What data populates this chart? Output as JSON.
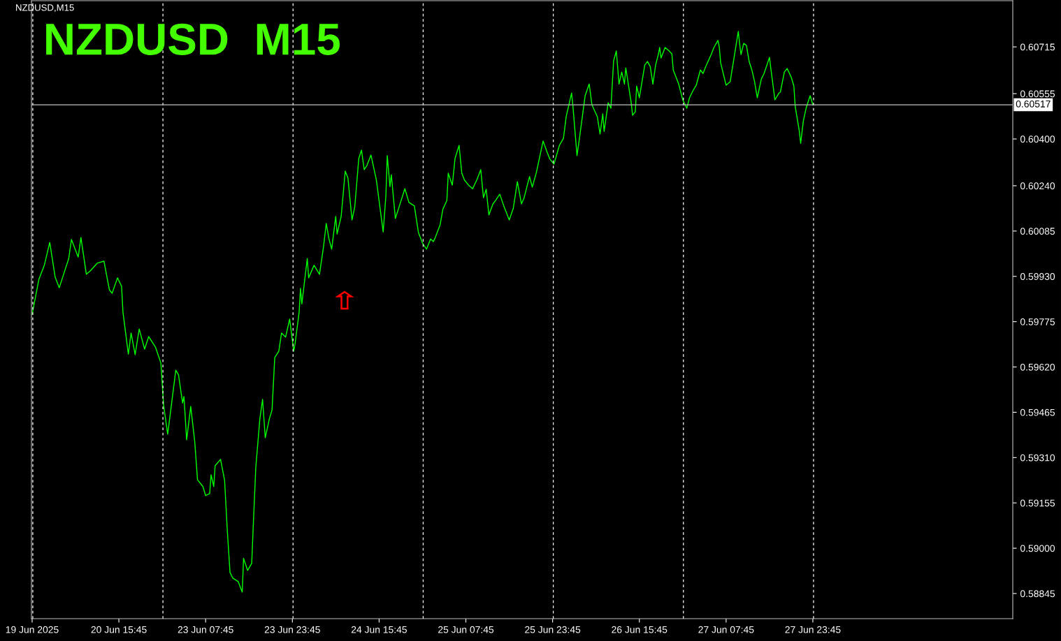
{
  "chart_data": {
    "type": "line",
    "title": "NZDUSD  M15",
    "subtitle": "NZDUSD,M15",
    "categories": [
      "19 Jun 2025",
      null,
      null,
      null,
      null,
      null,
      null,
      null,
      null,
      null,
      null,
      null,
      null,
      null,
      null,
      null,
      null,
      null,
      null,
      null,
      null,
      null,
      null,
      null,
      null,
      null,
      null,
      null,
      null,
      null,
      null,
      null,
      null,
      null,
      null,
      null,
      null,
      null,
      null,
      null,
      null,
      null,
      null,
      null,
      null,
      null,
      null,
      null,
      null,
      null,
      null,
      null,
      null,
      null,
      null,
      null,
      null,
      null,
      null,
      null,
      null,
      null,
      null,
      null,
      "20 Jun 15:45",
      null,
      null,
      null,
      null,
      null,
      null,
      null,
      null,
      null,
      null,
      null,
      null,
      null,
      null,
      null,
      null,
      null,
      null,
      null,
      null,
      null,
      null,
      null,
      null,
      null,
      null,
      null,
      null,
      null,
      null,
      null,
      null,
      null,
      null,
      null,
      null,
      null,
      null,
      null,
      null,
      null,
      null,
      null,
      null,
      null,
      null,
      null,
      null,
      null,
      null,
      null,
      null,
      null,
      null,
      null,
      null,
      null,
      null,
      null,
      null,
      null,
      null,
      null,
      "23 Jun 07:45",
      null,
      null,
      null,
      null,
      null,
      null,
      null,
      null,
      null,
      null,
      null,
      null,
      null,
      null,
      null,
      null,
      null,
      null,
      null,
      null,
      null,
      null,
      null,
      null,
      null,
      null,
      null,
      null,
      null,
      null,
      null,
      null,
      null,
      null,
      null,
      null,
      null,
      null,
      null,
      null,
      null,
      null,
      null,
      null,
      null,
      null,
      null,
      null,
      null,
      null,
      null,
      null,
      null,
      null,
      null,
      null,
      null,
      null,
      null,
      null,
      null,
      null,
      null,
      "23 Jun 23:45",
      null,
      null,
      null,
      null,
      null,
      null,
      null,
      null,
      null,
      null,
      null,
      null,
      null,
      null,
      null,
      null,
      null,
      null,
      null,
      null,
      null,
      null,
      null,
      null,
      null,
      null,
      null,
      null,
      null,
      null,
      null,
      null,
      null,
      null,
      null,
      null,
      null,
      null,
      null,
      null,
      null,
      null,
      null,
      null,
      null,
      null,
      null,
      null,
      null,
      null,
      null,
      null,
      null,
      null,
      null,
      null,
      null,
      null,
      null,
      null,
      null,
      null,
      null,
      "24 Jun 15:45",
      null,
      null,
      null,
      null,
      null,
      null,
      null,
      null,
      null,
      null,
      null,
      null,
      null,
      null,
      null,
      null,
      null,
      null,
      null,
      null,
      null,
      null,
      null,
      null,
      null,
      null,
      null,
      null,
      null,
      null,
      null,
      null,
      null,
      null,
      null,
      null,
      null,
      null,
      null,
      null,
      null,
      null,
      null,
      null,
      null,
      null,
      null,
      null,
      null,
      null,
      null,
      null,
      null,
      null,
      null,
      null,
      null,
      null,
      null,
      null,
      null,
      null,
      null,
      "25 Jun 07:45",
      null,
      null,
      null,
      null,
      null,
      null,
      null,
      null,
      null,
      null,
      null,
      null,
      null,
      null,
      null,
      null,
      null,
      null,
      null,
      null,
      null,
      null,
      null,
      null,
      null,
      null,
      null,
      null,
      null,
      null,
      null,
      null,
      null,
      null,
      null,
      null,
      null,
      null,
      null,
      null,
      null,
      null,
      null,
      null,
      null,
      null,
      null,
      null,
      null,
      null,
      null,
      null,
      null,
      null,
      null,
      null,
      null,
      null,
      null,
      null,
      null,
      null,
      null,
      "25 Jun 23:45",
      null,
      null,
      null,
      null,
      null,
      null,
      null,
      null,
      null,
      null,
      null,
      null,
      null,
      null,
      null,
      null,
      null,
      null,
      null,
      null,
      null,
      null,
      null,
      null,
      null,
      null,
      null,
      null,
      null,
      null,
      null,
      null,
      null,
      null,
      null,
      null,
      null,
      null,
      null,
      null,
      null,
      null,
      null,
      null,
      null,
      null,
      null,
      null,
      null,
      null,
      null,
      null,
      null,
      null,
      null,
      null,
      null,
      null,
      null,
      null,
      null,
      null,
      null,
      "26 Jun 15:45",
      null,
      null,
      null,
      null,
      null,
      null,
      null,
      null,
      null,
      null,
      null,
      null,
      null,
      null,
      null,
      null,
      null,
      null,
      null,
      null,
      null,
      null,
      null,
      null,
      null,
      null,
      null,
      null,
      null,
      null,
      null,
      null,
      null,
      null,
      null,
      null,
      null,
      null,
      null,
      null,
      null,
      null,
      null,
      null,
      null,
      null,
      null,
      null,
      null,
      null,
      null,
      null,
      null,
      null,
      null,
      null,
      null,
      null,
      null,
      null,
      null,
      null,
      null,
      "27 Jun 07:45",
      null,
      null,
      null,
      null,
      null,
      null,
      null,
      null,
      null,
      null,
      null,
      null,
      null,
      null,
      null,
      null,
      null,
      null,
      null,
      null,
      null,
      null,
      null,
      null,
      null,
      null,
      null,
      null,
      null,
      null,
      null,
      null,
      null,
      null,
      null,
      null,
      null,
      null,
      null,
      null,
      null,
      null,
      null,
      null,
      null,
      null,
      null,
      null,
      null,
      null,
      null,
      null,
      null,
      null,
      null,
      null,
      null,
      null,
      null,
      null,
      null,
      null,
      null,
      "27 Jun 23:45",
      null,
      null,
      null,
      null,
      null,
      null,
      null,
      null,
      null,
      null,
      null,
      null,
      null,
      null,
      null,
      null,
      null,
      null,
      null,
      null,
      null,
      null,
      null,
      null,
      null,
      null,
      null,
      null,
      null,
      null,
      null,
      null,
      null,
      null,
      null,
      null,
      null,
      null,
      null,
      null,
      null,
      null,
      null,
      null,
      null,
      null,
      null,
      null,
      null,
      null,
      null,
      null,
      null,
      null,
      null,
      null,
      null,
      null,
      null,
      null,
      null,
      null,
      null,
      null,
      null,
      null,
      null,
      null,
      null,
      null,
      null,
      null,
      null,
      null,
      null,
      null,
      null,
      null,
      null,
      null,
      null,
      null,
      null,
      null,
      null,
      null,
      null,
      null,
      null,
      null,
      null,
      null,
      null,
      null,
      null,
      null,
      null,
      null,
      null,
      null,
      null,
      null,
      null,
      null,
      null,
      null,
      null,
      null,
      null,
      null,
      null,
      null,
      null,
      null,
      null,
      null,
      null,
      null,
      null,
      null,
      null,
      null,
      null,
      null,
      null,
      null,
      null,
      null,
      null,
      null,
      null,
      null,
      null,
      null,
      null,
      null,
      null,
      null,
      null,
      null,
      null,
      null,
      null,
      null,
      null,
      null,
      null
    ],
    "ylim": [
      0.58759,
      0.60873
    ],
    "yticks": [
      0.58845,
      {
        "value": 0.59,
        "label": "0.59000"
      },
      0.59155,
      {
        "value": 0.5931,
        "label": "0.59310"
      },
      0.59465,
      {
        "value": 0.5962,
        "label": "0.59620"
      },
      0.59775,
      {
        "value": 0.5993,
        "label": "0.59930"
      },
      0.60085,
      {
        "value": 0.6024,
        "label": "0.60240"
      },
      {
        "value": 0.604,
        "label": "0.60400"
      },
      0.60555,
      0.60715
    ],
    "grid": false,
    "marker": "none",
    "line_style": "solid",
    "ref_lines": [
      {
        "axis": "y",
        "value": 0.60517,
        "label": "0.60517",
        "color": "#c0c0c0",
        "line_style": "solid"
      }
    ],
    "series": [
      {
        "color": "#00ff00",
        "values": [
          0.598,
          null,
          null,
          null,
          null,
          0.5992,
          null,
          null,
          null,
          0.59968,
          null,
          null,
          null,
          0.60046,
          null,
          null,
          null,
          0.59927,
          null,
          null,
          0.59891,
          null,
          null,
          null,
          null,
          null,
          null,
          0.59991,
          null,
          0.60056,
          null,
          null,
          null,
          null,
          0.59996,
          null,
          0.60063,
          null,
          null,
          null,
          0.59937,
          null,
          null,
          0.59949,
          null,
          null,
          null,
          null,
          0.59975,
          null,
          null,
          null,
          null,
          0.59982,
          null,
          null,
          null,
          0.59884,
          null,
          0.59872,
          null,
          null,
          null,
          0.59925,
          null,
          null,
          0.59896,
          0.59808,
          null,
          null,
          null,
          0.59664,
          null,
          0.59736,
          null,
          null,
          0.59662,
          null,
          null,
          0.5975,
          null,
          null,
          null,
          0.59681,
          null,
          null,
          0.59724,
          null,
          null,
          null,
          null,
          0.59688,
          null,
          null,
          null,
          0.59633,
          null,
          0.5949,
          null,
          null,
          0.5939,
          null,
          null,
          null,
          null,
          null,
          0.59609,
          null,
          0.59593,
          null,
          null,
          0.59497,
          0.59519,
          null,
          0.59371,
          null,
          null,
          0.59485,
          null,
          null,
          0.59363,
          null,
          0.59234,
          null,
          null,
          null,
          0.59211,
          null,
          0.5918,
          null,
          null,
          0.59187,
          0.59251,
          null,
          0.59211,
          0.59282,
          null,
          null,
          null,
          0.59304,
          null,
          null,
          0.59232,
          null,
          0.5906,
          null,
          0.58917,
          null,
          0.58898,
          null,
          null,
          null,
          0.58886,
          null,
          null,
          0.5885,
          0.58965,
          null,
          null,
          0.58924,
          null,
          null,
          0.58948,
          0.5906,
          null,
          0.59275,
          null,
          null,
          0.59442,
          null,
          0.59509,
          null,
          0.59378,
          null,
          null,
          0.59442,
          null,
          0.59473,
          null,
          0.59652,
          null,
          null,
          0.59674,
          null,
          0.59736,
          null,
          null,
          0.59722,
          null,
          null,
          0.59784,
          null,
          null,
          0.59674,
          0.597,
          null,
          null,
          0.59808,
          0.59889,
          0.59836,
          null,
          null,
          null,
          0.59991,
          0.59925,
          null,
          null,
          null,
          0.59968,
          null,
          null,
          null,
          0.59937,
          null,
          null,
          0.60032,
          null,
          0.60111,
          null,
          0.60058,
          null,
          0.60023,
          null,
          null,
          0.60135,
          0.60075,
          null,
          null,
          0.60135,
          null,
          null,
          0.6029,
          null,
          0.60266,
          null,
          null,
          0.60123,
          null,
          0.60166,
          null,
          null,
          0.60333,
          null,
          0.60362,
          null,
          0.60295,
          null,
          0.60309,
          null,
          null,
          0.60345,
          null,
          null,
          null,
          0.60259,
          null,
          null,
          null,
          null,
          0.60082,
          null,
          0.60206,
          0.60343,
          null,
          0.60237,
          0.60278,
          null,
          null,
          0.60128,
          null,
          null,
          null,
          null,
          null,
          null,
          0.6023,
          null,
          null,
          0.60183,
          null,
          null,
          null,
          0.60171,
          null,
          null,
          0.6008,
          null,
          null,
          0.60044,
          null,
          null,
          0.60023,
          null,
          null,
          0.60058,
          null,
          0.60049,
          0.60058,
          null,
          null,
          null,
          0.60106,
          null,
          0.60159,
          null,
          null,
          0.6019,
          0.60283,
          null,
          null,
          0.60242,
          null,
          0.60333,
          null,
          null,
          0.60378,
          null,
          0.60283,
          null,
          0.60259,
          null,
          null,
          0.60242,
          null,
          null,
          0.6023,
          null,
          null,
          0.60259,
          null,
          null,
          0.60295,
          null,
          0.60199,
          null,
          0.60228,
          null,
          0.6014,
          null,
          null,
          0.60178,
          null,
          0.6019,
          null,
          null,
          0.60211,
          null,
          null,
          0.60171,
          null,
          null,
          null,
          0.60123,
          null,
          null,
          0.60163,
          null,
          null,
          0.60254,
          null,
          null,
          0.60178,
          null,
          0.60199,
          null,
          null,
          0.60254,
          0.60271,
          null,
          0.60235,
          null,
          null,
          0.60285,
          null,
          null,
          null,
          null,
          0.60393,
          null,
          null,
          0.60354,
          null,
          0.60331,
          null,
          null,
          0.60314,
          null,
          null,
          null,
          0.60378,
          null,
          null,
          0.60402,
          null,
          0.60476,
          null,
          null,
          null,
          0.60557,
          0.60512,
          null,
          null,
          0.60343,
          null,
          0.60409,
          null,
          null,
          null,
          0.60548,
          null,
          null,
          0.60588,
          null,
          0.60517,
          null,
          null,
          null,
          0.60476,
          null,
          0.60417,
          null,
          0.60486,
          0.60426,
          null,
          null,
          0.60524,
          null,
          0.60505,
          null,
          0.60667,
          null,
          0.60701,
          null,
          0.60588,
          null,
          0.60629,
          null,
          0.60588,
          0.60643,
          null,
          null,
          null,
          0.60524,
          0.60481,
          null,
          0.60493,
          0.60581,
          null,
          0.60541,
          null,
          null,
          null,
          0.60653,
          null,
          0.60665,
          null,
          0.60648,
          null,
          0.60588,
          null,
          0.60653,
          null,
          0.60689,
          0.60713,
          0.60677,
          null,
          null,
          0.60713,
          null,
          null,
          0.60701,
          null,
          0.60691,
          0.60636,
          0.60624,
          null,
          null,
          0.60588,
          null,
          null,
          0.60534,
          null,
          null,
          0.60505,
          null,
          0.60541,
          null,
          null,
          0.60569,
          null,
          0.60584,
          null,
          null,
          0.60636,
          null,
          0.60624,
          null,
          0.60648,
          null,
          null,
          null,
          0.60689,
          null,
          0.60713,
          null,
          null,
          0.60737,
          0.60713,
          0.6066,
          null,
          null,
          null,
          0.60584,
          null,
          null,
          0.60596,
          null,
          0.60653,
          null,
          null,
          null,
          0.60768,
          0.60725,
          0.60689,
          null,
          0.60727,
          null,
          0.6072,
          null,
          0.60665,
          null,
          0.60636,
          null,
          0.60596,
          null,
          0.60541,
          null,
          null,
          0.60605,
          null,
          0.60624,
          null,
          null,
          null,
          0.60679,
          0.60641,
          null,
          null,
          0.60534,
          null,
          null,
          0.60557,
          0.6056,
          null,
          null,
          0.60629,
          null,
          0.60641,
          null,
          null,
          0.60612,
          null,
          0.60581,
          0.6051,
          null,
          null,
          0.60428,
          0.60385,
          null,
          0.60462,
          null,
          0.60505,
          null,
          null,
          0.60548,
          null,
          0.60517,
          null,
          null,
          null,
          null,
          null,
          null,
          null,
          null,
          null,
          null,
          null,
          null,
          null,
          null,
          null,
          null,
          null,
          null,
          null,
          null,
          null,
          null,
          null,
          null,
          null,
          null,
          null,
          null,
          null,
          null,
          null,
          null,
          null,
          null,
          null,
          null,
          null,
          null,
          null,
          null,
          null,
          null,
          null,
          null,
          null,
          null,
          null,
          null,
          null,
          null,
          null,
          null,
          null,
          null,
          null,
          null,
          null,
          null,
          null,
          null,
          null,
          null,
          null,
          null,
          null,
          null,
          null,
          null,
          null,
          null,
          null,
          null,
          null,
          null,
          null,
          null,
          null,
          null,
          null,
          null,
          null,
          null,
          null,
          null,
          null,
          null,
          null,
          null,
          null,
          null,
          null,
          null,
          null,
          null,
          null,
          null,
          null,
          null,
          null,
          null,
          null,
          null,
          null,
          null,
          null,
          null,
          null,
          null,
          null,
          null,
          null,
          null,
          null,
          null,
          null,
          null,
          null,
          null,
          null,
          null,
          null,
          null,
          null,
          null,
          null,
          null,
          null,
          null,
          null,
          null,
          null,
          null,
          null,
          null,
          null,
          null,
          null,
          null,
          null,
          null,
          null,
          null,
          null,
          null,
          null,
          null,
          null
        ]
      }
    ]
  }
}
